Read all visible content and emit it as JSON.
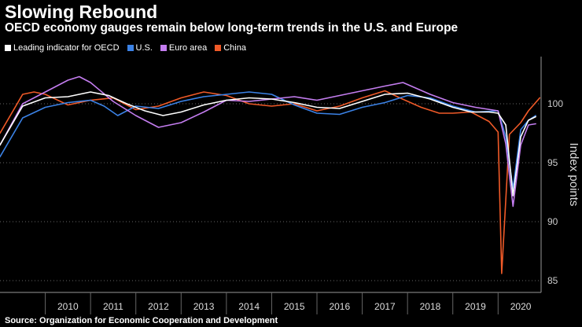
{
  "title": "Slowing Rebound",
  "subtitle": "OECD economy gauges remain below long-term trends in the U.S. and Europe",
  "source": "Source: Organization for Economic Cooperation and Development",
  "legend": [
    {
      "label": "Leading indicator for OECD",
      "color": "#ffffff"
    },
    {
      "label": "U.S.",
      "color": "#3b82e6"
    },
    {
      "label": "Euro area",
      "color": "#c47df0"
    },
    {
      "label": "China",
      "color": "#f05a28"
    }
  ],
  "chart_data": {
    "type": "line",
    "title": "Slowing Rebound",
    "ylabel": "Index points",
    "xlabel": "",
    "ylim": [
      84,
      104
    ],
    "xlim": [
      2009,
      2020.95
    ],
    "yticks": [
      85,
      90,
      95,
      100
    ],
    "year_labels": [
      "2010",
      "2011",
      "2012",
      "2013",
      "2014",
      "2015",
      "2016",
      "2017",
      "2018",
      "2019",
      "2020"
    ],
    "series": [
      {
        "name": "Leading indicator for OECD",
        "color": "#ffffff",
        "points": [
          [
            2009.0,
            96.5
          ],
          [
            2009.5,
            99.8
          ],
          [
            2010.0,
            100.5
          ],
          [
            2010.5,
            100.6
          ],
          [
            2011.0,
            101.0
          ],
          [
            2011.4,
            100.7
          ],
          [
            2011.8,
            100.0
          ],
          [
            2012.2,
            99.4
          ],
          [
            2012.6,
            99.0
          ],
          [
            2013.0,
            99.3
          ],
          [
            2013.5,
            99.9
          ],
          [
            2014.0,
            100.3
          ],
          [
            2014.5,
            100.5
          ],
          [
            2015.0,
            100.4
          ],
          [
            2015.5,
            100.1
          ],
          [
            2016.0,
            99.7
          ],
          [
            2016.5,
            99.6
          ],
          [
            2017.0,
            100.2
          ],
          [
            2017.5,
            100.8
          ],
          [
            2018.0,
            100.9
          ],
          [
            2018.5,
            100.4
          ],
          [
            2019.0,
            99.7
          ],
          [
            2019.4,
            99.3
          ],
          [
            2019.8,
            99.3
          ],
          [
            2020.0,
            99.2
          ],
          [
            2020.17,
            98.2
          ],
          [
            2020.33,
            92.2
          ],
          [
            2020.5,
            97.2
          ],
          [
            2020.67,
            98.6
          ],
          [
            2020.83,
            98.9
          ]
        ]
      },
      {
        "name": "U.S.",
        "color": "#3b82e6",
        "points": [
          [
            2009.0,
            95.5
          ],
          [
            2009.5,
            98.8
          ],
          [
            2010.0,
            99.7
          ],
          [
            2010.5,
            100.1
          ],
          [
            2011.0,
            100.3
          ],
          [
            2011.3,
            99.8
          ],
          [
            2011.6,
            99.0
          ],
          [
            2012.0,
            99.8
          ],
          [
            2012.5,
            99.6
          ],
          [
            2013.0,
            100.2
          ],
          [
            2013.5,
            100.6
          ],
          [
            2014.0,
            100.8
          ],
          [
            2014.5,
            101.0
          ],
          [
            2015.0,
            100.8
          ],
          [
            2015.5,
            99.9
          ],
          [
            2016.0,
            99.2
          ],
          [
            2016.5,
            99.1
          ],
          [
            2017.0,
            99.7
          ],
          [
            2017.5,
            100.1
          ],
          [
            2018.0,
            100.7
          ],
          [
            2018.5,
            100.5
          ],
          [
            2019.0,
            99.8
          ],
          [
            2019.5,
            99.3
          ],
          [
            2020.0,
            99.4
          ],
          [
            2020.17,
            97.2
          ],
          [
            2020.33,
            92.8
          ],
          [
            2020.5,
            97.8
          ],
          [
            2020.67,
            98.6
          ],
          [
            2020.83,
            99.0
          ]
        ]
      },
      {
        "name": "Euro area",
        "color": "#c47df0",
        "points": [
          [
            2009.0,
            96.5
          ],
          [
            2009.5,
            100.0
          ],
          [
            2010.0,
            101.0
          ],
          [
            2010.5,
            102.0
          ],
          [
            2010.75,
            102.3
          ],
          [
            2011.0,
            101.8
          ],
          [
            2011.5,
            100.2
          ],
          [
            2012.0,
            99.0
          ],
          [
            2012.5,
            98.0
          ],
          [
            2013.0,
            98.4
          ],
          [
            2013.5,
            99.3
          ],
          [
            2014.0,
            100.3
          ],
          [
            2014.5,
            100.2
          ],
          [
            2015.0,
            100.4
          ],
          [
            2015.5,
            100.6
          ],
          [
            2016.0,
            100.3
          ],
          [
            2016.5,
            100.7
          ],
          [
            2017.0,
            101.1
          ],
          [
            2017.5,
            101.5
          ],
          [
            2017.9,
            101.8
          ],
          [
            2018.5,
            100.8
          ],
          [
            2019.0,
            100.1
          ],
          [
            2019.5,
            99.7
          ],
          [
            2020.0,
            99.4
          ],
          [
            2020.17,
            96.6
          ],
          [
            2020.33,
            91.3
          ],
          [
            2020.5,
            96.5
          ],
          [
            2020.67,
            98.2
          ],
          [
            2020.83,
            98.3
          ]
        ]
      },
      {
        "name": "China",
        "color": "#f05a28",
        "points": [
          [
            2009.0,
            97.5
          ],
          [
            2009.5,
            100.8
          ],
          [
            2009.75,
            101.0
          ],
          [
            2010.0,
            100.8
          ],
          [
            2010.5,
            99.9
          ],
          [
            2011.0,
            100.3
          ],
          [
            2011.5,
            100.5
          ],
          [
            2012.0,
            99.5
          ],
          [
            2012.5,
            99.8
          ],
          [
            2013.0,
            100.5
          ],
          [
            2013.5,
            101.0
          ],
          [
            2014.0,
            100.7
          ],
          [
            2014.5,
            100.0
          ],
          [
            2015.0,
            99.8
          ],
          [
            2015.5,
            100.0
          ],
          [
            2016.0,
            99.4
          ],
          [
            2016.5,
            99.8
          ],
          [
            2017.0,
            100.5
          ],
          [
            2017.5,
            101.1
          ],
          [
            2017.83,
            100.5
          ],
          [
            2018.3,
            99.7
          ],
          [
            2018.7,
            99.2
          ],
          [
            2019.0,
            99.2
          ],
          [
            2019.4,
            99.3
          ],
          [
            2019.8,
            98.5
          ],
          [
            2020.0,
            97.6
          ],
          [
            2020.08,
            85.6
          ],
          [
            2020.25,
            97.4
          ],
          [
            2020.5,
            98.4
          ],
          [
            2020.67,
            99.4
          ],
          [
            2020.92,
            100.5
          ]
        ]
      }
    ]
  }
}
